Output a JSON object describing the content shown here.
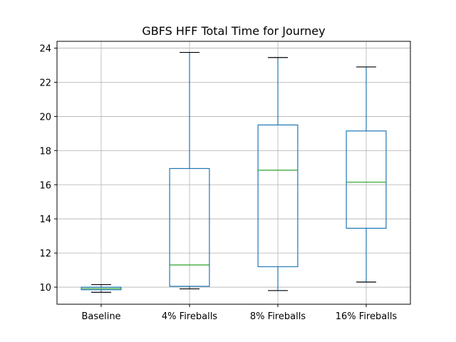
{
  "chart_data": {
    "type": "box",
    "title": "GBFS HFF Total Time for Journey",
    "xlabel": "",
    "ylabel": "",
    "ylim": [
      9.0,
      24.4
    ],
    "yticks": [
      10,
      12,
      14,
      16,
      18,
      20,
      22,
      24
    ],
    "grid": true,
    "categories": [
      "Baseline",
      "4% Fireballs",
      "8% Fireballs",
      "16% Fireballs"
    ],
    "boxes": [
      {
        "label": "Baseline",
        "whisker_low": 9.7,
        "q1": 9.85,
        "median": 9.92,
        "q3": 10.0,
        "whisker_high": 10.15
      },
      {
        "label": "4% Fireballs",
        "whisker_low": 9.9,
        "q1": 10.05,
        "median": 11.3,
        "q3": 16.95,
        "whisker_high": 23.75
      },
      {
        "label": "8% Fireballs",
        "whisker_low": 9.8,
        "q1": 11.2,
        "median": 16.85,
        "q3": 19.5,
        "whisker_high": 23.45
      },
      {
        "label": "16% Fireballs",
        "whisker_low": 10.3,
        "q1": 13.45,
        "median": 16.15,
        "q3": 19.15,
        "whisker_high": 22.9
      }
    ],
    "colors": {
      "box": "#1f77b4",
      "median": "#2ca02c",
      "whisker_cap": "#000000",
      "grid": "#b0b0b0"
    }
  }
}
